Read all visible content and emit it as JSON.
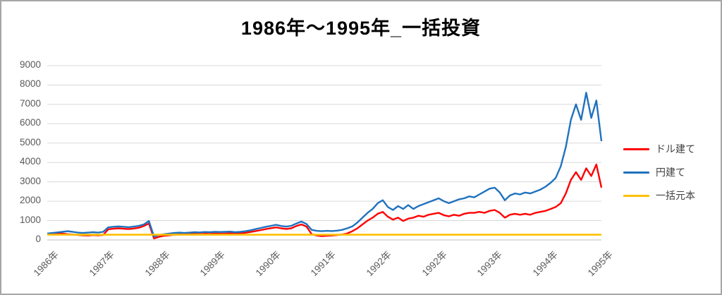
{
  "window": {
    "border_color": "#A6A6A6",
    "background": "#FFFFFF"
  },
  "chart_data": {
    "type": "line",
    "title": "1986年〜1995年_一括投資",
    "xlabel": "",
    "ylabel": "",
    "ylim": [
      0,
      9000
    ],
    "y_ticks": [
      0,
      1000,
      2000,
      3000,
      4000,
      5000,
      6000,
      7000,
      8000,
      9000
    ],
    "x_tick_labels": [
      "1986年",
      "1987年",
      "1988年",
      "1989年",
      "1990年",
      "1991年",
      "1992年",
      "1992年",
      "1993年",
      "1994年",
      "1995年"
    ],
    "grid": "horizontal",
    "gridline_color": "#D9D9D9",
    "axis_line_color": "#BFBFBF",
    "legend_position": "right",
    "series": [
      {
        "name": "ドル建て",
        "color": "#FF0000",
        "values": [
          310,
          330,
          350,
          330,
          300,
          280,
          260,
          240,
          230,
          250,
          240,
          260,
          550,
          580,
          600,
          580,
          560,
          590,
          630,
          720,
          850,
          80,
          160,
          220,
          240,
          270,
          290,
          280,
          300,
          310,
          300,
          320,
          310,
          330,
          320,
          330,
          340,
          330,
          340,
          370,
          410,
          460,
          510,
          560,
          610,
          650,
          600,
          570,
          600,
          720,
          800,
          690,
          300,
          230,
          200,
          220,
          230,
          250,
          280,
          330,
          450,
          600,
          800,
          1000,
          1150,
          1350,
          1450,
          1200,
          1050,
          1150,
          980,
          1100,
          1150,
          1250,
          1200,
          1300,
          1350,
          1400,
          1280,
          1220,
          1300,
          1250,
          1350,
          1400,
          1400,
          1450,
          1400,
          1500,
          1550,
          1400,
          1150,
          1300,
          1350,
          1300,
          1350,
          1300,
          1400,
          1450,
          1500,
          1600,
          1700,
          1900,
          2400,
          3100,
          3500,
          3100,
          3700,
          3300,
          3900,
          2700
        ]
      },
      {
        "name": "円建て",
        "color": "#1F72BE",
        "values": [
          330,
          360,
          390,
          420,
          450,
          420,
          380,
          360,
          380,
          400,
          380,
          420,
          650,
          680,
          700,
          680,
          660,
          690,
          730,
          800,
          980,
          180,
          260,
          300,
          330,
          360,
          380,
          360,
          380,
          400,
          390,
          410,
          400,
          420,
          410,
          420,
          430,
          400,
          420,
          450,
          500,
          560,
          620,
          680,
          730,
          780,
          720,
          690,
          730,
          850,
          950,
          820,
          520,
          470,
          450,
          470,
          460,
          480,
          520,
          600,
          700,
          900,
          1150,
          1400,
          1600,
          1900,
          2050,
          1700,
          1550,
          1750,
          1600,
          1800,
          1600,
          1750,
          1850,
          1950,
          2050,
          2150,
          2000,
          1900,
          2000,
          2100,
          2150,
          2250,
          2200,
          2350,
          2500,
          2650,
          2700,
          2450,
          2050,
          2300,
          2400,
          2350,
          2450,
          2400,
          2500,
          2600,
          2750,
          2950,
          3200,
          3800,
          4800,
          6200,
          7000,
          6200,
          7600,
          6300,
          7200,
          5100
        ]
      },
      {
        "name": "一括元本",
        "color": "#FFC000",
        "constant": 270
      }
    ]
  }
}
